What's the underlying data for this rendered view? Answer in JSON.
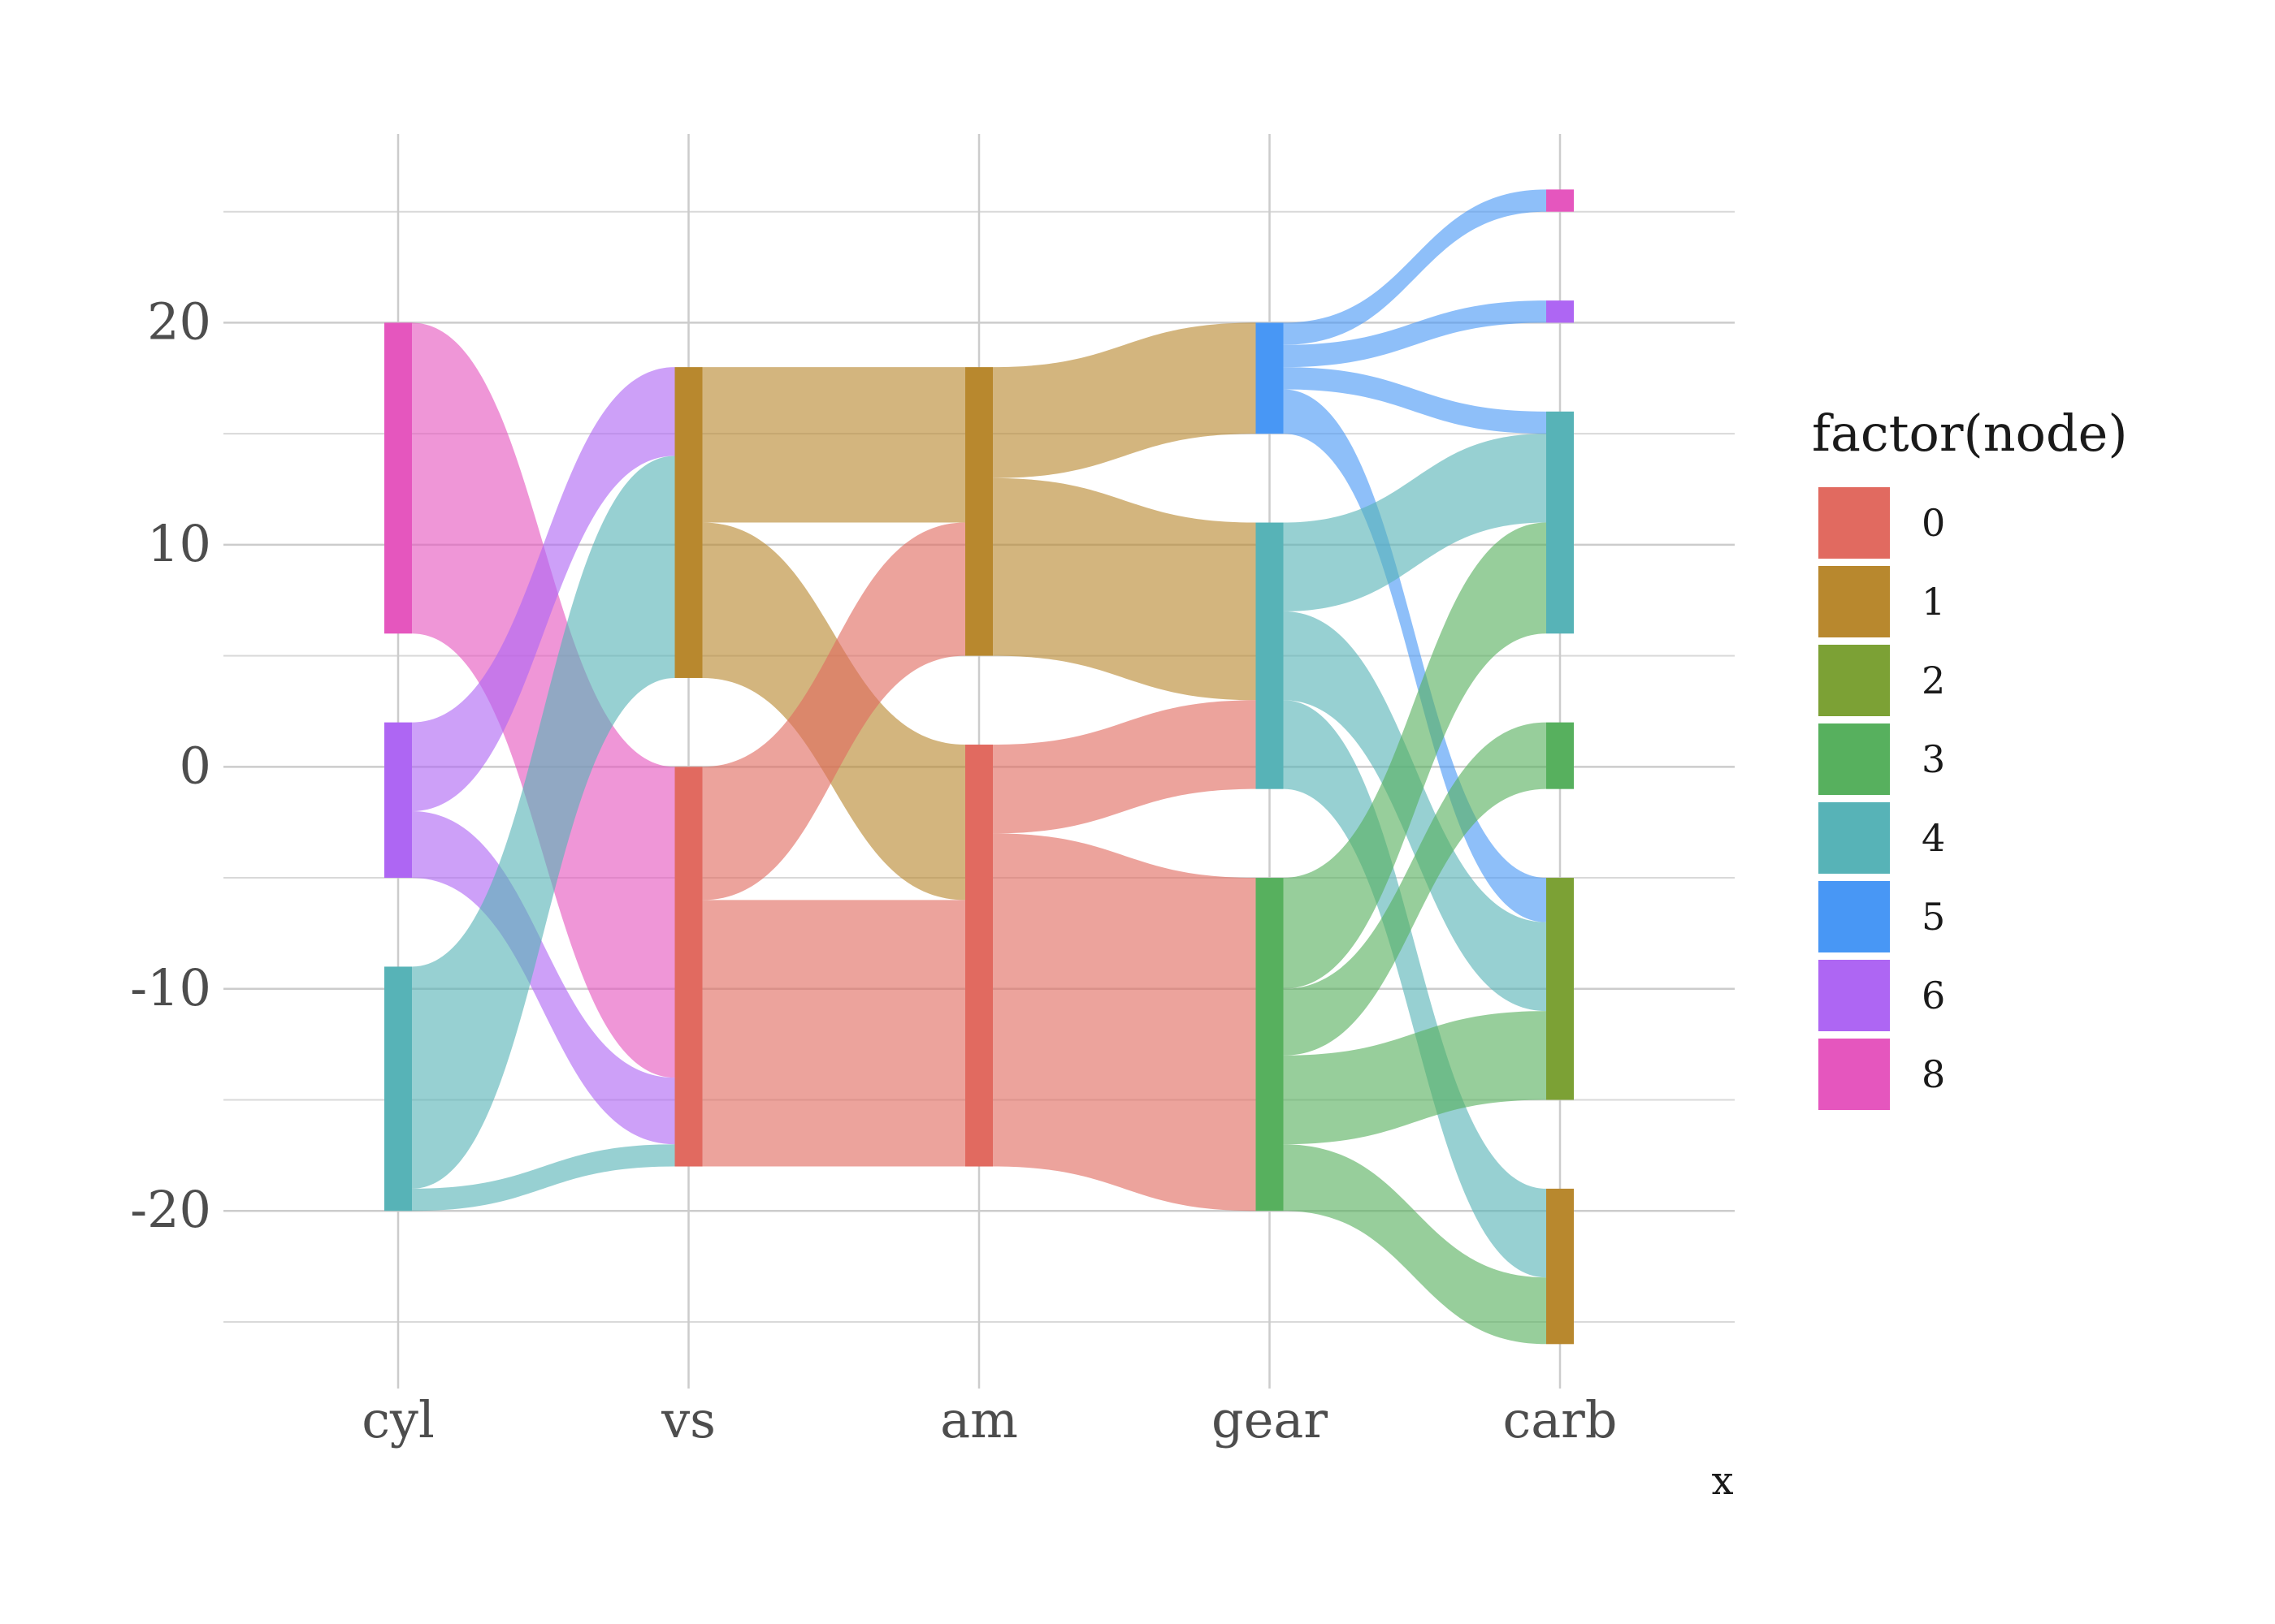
{
  "chart_data": {
    "type": "sankey",
    "title": "",
    "xlabel": "x",
    "ylabel": "",
    "axes": [
      "cyl",
      "vs",
      "am",
      "gear",
      "carb"
    ],
    "ylim": [
      -28,
      28.5
    ],
    "y_ticks": [
      20,
      10,
      0,
      -10,
      -20
    ],
    "y_tick_labels": [
      "20",
      "10",
      "0",
      "-10",
      "-20"
    ],
    "y_minor_ticks": [
      25,
      15,
      5,
      -5,
      -15,
      -25
    ],
    "grid": true,
    "legend": {
      "title": "factor(node)",
      "position": "right",
      "entries": [
        {
          "label": "0",
          "color": "#E16A60"
        },
        {
          "label": "1",
          "color": "#B8882E"
        },
        {
          "label": "2",
          "color": "#7CA135"
        },
        {
          "label": "3",
          "color": "#57B05E"
        },
        {
          "label": "4",
          "color": "#57B3B7"
        },
        {
          "label": "5",
          "color": "#4897F5"
        },
        {
          "label": "6",
          "color": "#AE66F3"
        },
        {
          "label": "8",
          "color": "#E556BE"
        }
      ]
    },
    "nodes": [
      {
        "axis": "cyl",
        "node": "8",
        "y0": 6,
        "y1": 20
      },
      {
        "axis": "cyl",
        "node": "6",
        "y0": -5,
        "y1": 2
      },
      {
        "axis": "cyl",
        "node": "4",
        "y0": -20,
        "y1": -9
      },
      {
        "axis": "vs",
        "node": "1",
        "y0": 4,
        "y1": 18
      },
      {
        "axis": "vs",
        "node": "0",
        "y0": -18,
        "y1": 0
      },
      {
        "axis": "am",
        "node": "1",
        "y0": 5,
        "y1": 18
      },
      {
        "axis": "am",
        "node": "0",
        "y0": -18,
        "y1": 1
      },
      {
        "axis": "gear",
        "node": "5",
        "y0": 15,
        "y1": 20
      },
      {
        "axis": "gear",
        "node": "4",
        "y0": -1,
        "y1": 11
      },
      {
        "axis": "gear",
        "node": "3",
        "y0": -20,
        "y1": -5
      },
      {
        "axis": "carb",
        "node": "8",
        "y0": 25,
        "y1": 26
      },
      {
        "axis": "carb",
        "node": "6",
        "y0": 20,
        "y1": 21
      },
      {
        "axis": "carb",
        "node": "4",
        "y0": 6,
        "y1": 16
      },
      {
        "axis": "carb",
        "node": "3",
        "y0": -1,
        "y1": 2
      },
      {
        "axis": "carb",
        "node": "2",
        "y0": -15,
        "y1": -5
      },
      {
        "axis": "carb",
        "node": "1",
        "y0": -26,
        "y1": -19
      }
    ],
    "flows": [
      {
        "from": "cyl",
        "to": "vs",
        "color_node": "8",
        "ys0": 6,
        "ys1": 20,
        "yt0": -14,
        "yt1": 0
      },
      {
        "from": "cyl",
        "to": "vs",
        "color_node": "6",
        "ys0": -2,
        "ys1": 2,
        "yt0": 14,
        "yt1": 18
      },
      {
        "from": "cyl",
        "to": "vs",
        "color_node": "6",
        "ys0": -5,
        "ys1": -2,
        "yt0": -17,
        "yt1": -14
      },
      {
        "from": "cyl",
        "to": "vs",
        "color_node": "4",
        "ys0": -19,
        "ys1": -9,
        "yt0": 4,
        "yt1": 14
      },
      {
        "from": "cyl",
        "to": "vs",
        "color_node": "4",
        "ys0": -20,
        "ys1": -19,
        "yt0": -18,
        "yt1": -17
      },
      {
        "from": "vs",
        "to": "am",
        "color_node": "1",
        "ys0": 11,
        "ys1": 18,
        "yt0": 11,
        "yt1": 18
      },
      {
        "from": "vs",
        "to": "am",
        "color_node": "1",
        "ys0": 4,
        "ys1": 11,
        "yt0": -6,
        "yt1": 1
      },
      {
        "from": "vs",
        "to": "am",
        "color_node": "0",
        "ys0": -6,
        "ys1": 0,
        "yt0": 5,
        "yt1": 11
      },
      {
        "from": "vs",
        "to": "am",
        "color_node": "0",
        "ys0": -18,
        "ys1": -6,
        "yt0": -18,
        "yt1": -6
      },
      {
        "from": "am",
        "to": "gear",
        "color_node": "1",
        "ys0": 13,
        "ys1": 18,
        "yt0": 15,
        "yt1": 20
      },
      {
        "from": "am",
        "to": "gear",
        "color_node": "1",
        "ys0": 5,
        "ys1": 13,
        "yt0": 3,
        "yt1": 11
      },
      {
        "from": "am",
        "to": "gear",
        "color_node": "0",
        "ys0": -3,
        "ys1": 1,
        "yt0": -1,
        "yt1": 3
      },
      {
        "from": "am",
        "to": "gear",
        "color_node": "0",
        "ys0": -18,
        "ys1": -3,
        "yt0": -20,
        "yt1": -5
      },
      {
        "from": "gear",
        "to": "carb",
        "color_node": "5",
        "ys0": 19,
        "ys1": 20,
        "yt0": 25,
        "yt1": 26
      },
      {
        "from": "gear",
        "to": "carb",
        "color_node": "5",
        "ys0": 18,
        "ys1": 19,
        "yt0": 20,
        "yt1": 21
      },
      {
        "from": "gear",
        "to": "carb",
        "color_node": "5",
        "ys0": 17,
        "ys1": 18,
        "yt0": 15,
        "yt1": 16
      },
      {
        "from": "gear",
        "to": "carb",
        "color_node": "5",
        "ys0": 15,
        "ys1": 17,
        "yt0": -7,
        "yt1": -5
      },
      {
        "from": "gear",
        "to": "carb",
        "color_node": "4",
        "ys0": 7,
        "ys1": 11,
        "yt0": 11,
        "yt1": 15
      },
      {
        "from": "gear",
        "to": "carb",
        "color_node": "4",
        "ys0": 3,
        "ys1": 7,
        "yt0": -11,
        "yt1": -7
      },
      {
        "from": "gear",
        "to": "carb",
        "color_node": "4",
        "ys0": -1,
        "ys1": 3,
        "yt0": -23,
        "yt1": -19
      },
      {
        "from": "gear",
        "to": "carb",
        "color_node": "3",
        "ys0": -10,
        "ys1": -5,
        "yt0": 6,
        "yt1": 11
      },
      {
        "from": "gear",
        "to": "carb",
        "color_node": "3",
        "ys0": -13,
        "ys1": -10,
        "yt0": -1,
        "yt1": 2
      },
      {
        "from": "gear",
        "to": "carb",
        "color_node": "3",
        "ys0": -17,
        "ys1": -13,
        "yt0": -15,
        "yt1": -11
      },
      {
        "from": "gear",
        "to": "carb",
        "color_node": "3",
        "ys0": -20,
        "ys1": -17,
        "yt0": -26,
        "yt1": -23
      }
    ]
  }
}
